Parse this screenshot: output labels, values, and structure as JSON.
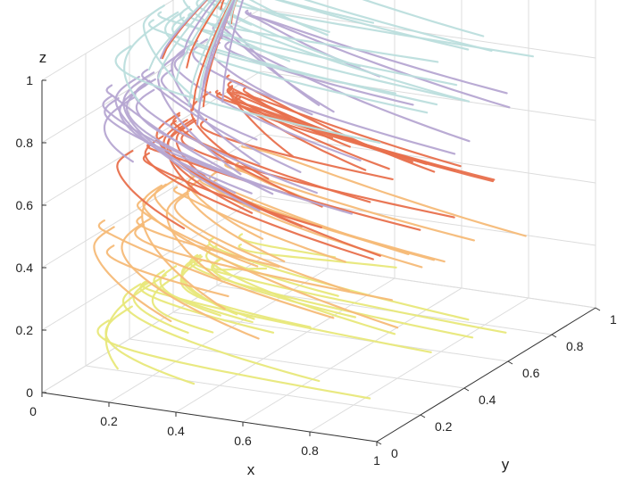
{
  "chart_data": {
    "type": "line",
    "subtype": "3d-trajectories",
    "title": "",
    "xlabel": "x",
    "ylabel": "y",
    "zlabel": "z",
    "xlim": [
      0,
      1
    ],
    "ylim": [
      0,
      1
    ],
    "zlim": [
      0,
      1
    ],
    "x_ticks": [
      "0",
      "0.2",
      "0.4",
      "0.6",
      "0.8",
      "1"
    ],
    "y_ticks": [
      "0",
      "0.2",
      "0.4",
      "0.6",
      "0.8",
      "1"
    ],
    "z_ticks": [
      "0",
      "0.2",
      "0.4",
      "0.6",
      "0.8",
      "1"
    ],
    "grid": true,
    "legend": "none",
    "converges_to": [
      0,
      1,
      1
    ],
    "series": [
      {
        "color": "#e8e87a",
        "z_start": 0.1,
        "z_end": 0.12,
        "num_trajectories": 22
      },
      {
        "color": "#f5bb78",
        "z_start": 0.3,
        "z_end": 0.38,
        "num_trajectories": 22
      },
      {
        "color": "#e8704d",
        "z_start": 0.5,
        "z_end": 0.6,
        "num_trajectories": 26
      },
      {
        "color": "#b6a6d2",
        "z_start": 0.7,
        "z_end": 0.8,
        "num_trajectories": 24
      },
      {
        "color": "#bcdedd",
        "z_start": 0.9,
        "z_end": 0.97,
        "num_trajectories": 20
      }
    ]
  }
}
